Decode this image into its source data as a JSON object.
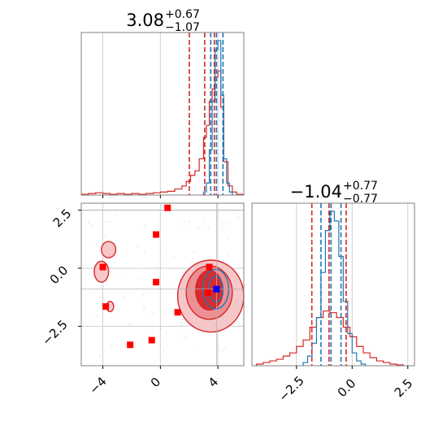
{
  "chart_data": [
    {
      "type": "histogram",
      "panel": "top-left",
      "title": {
        "value": "3.08",
        "plus": "+0.67",
        "minus": "−1.07"
      },
      "xlim": [
        -5.5,
        5.8
      ],
      "grid": true,
      "series": [
        {
          "name": "",
          "color": "#d62728",
          "bin_edges": [
            -5.5,
            -5.0,
            -4.5,
            -4.0,
            -3.5,
            -3.0,
            -2.5,
            -2.0,
            -1.5,
            -1.0,
            -0.5,
            0.0,
            0.5,
            1.0,
            1.5,
            1.8,
            2.1,
            2.4,
            2.7,
            3.0,
            3.2,
            3.4,
            3.6,
            3.8,
            4.0,
            4.2,
            4.4,
            4.7,
            5.0,
            5.3,
            5.8
          ],
          "counts": [
            0.5,
            1,
            1.5,
            1,
            0.5,
            1,
            0.5,
            1,
            0.5,
            1,
            1.5,
            2,
            2.5,
            4,
            6,
            9,
            13,
            16,
            24,
            38,
            46,
            62,
            70,
            78,
            82,
            58,
            22,
            6,
            2,
            0.5
          ]
        },
        {
          "name": "",
          "color": "#1f77b4",
          "bin_edges": [
            3.0,
            3.2,
            3.4,
            3.6,
            3.8,
            4.0,
            4.2,
            4.4,
            4.6,
            4.8,
            5.0
          ],
          "counts": [
            2,
            8,
            30,
            62,
            96,
            102,
            66,
            24,
            8,
            2
          ]
        }
      ],
      "vlines": [
        {
          "color": "#d62728",
          "x": [
            2.01,
            3.08,
            3.75
          ]
        },
        {
          "color": "#1f77b4",
          "x": [
            3.5,
            3.9,
            4.35
          ]
        }
      ]
    },
    {
      "type": "scatter",
      "panel": "bottom-left",
      "xlim": [
        -5.5,
        5.8
      ],
      "ylim": [
        -4.2,
        2.8
      ],
      "xticks": [
        "−4",
        "0",
        "4"
      ],
      "xtick_values": [
        -4,
        0,
        4
      ],
      "yticks": [
        "2.5",
        "0.0",
        "−2.5"
      ],
      "ytick_values": [
        2.5,
        0.0,
        -2.5
      ],
      "grid": true,
      "contours": [
        {
          "color": "#d62728",
          "fill": "#f5c4c6",
          "cx": 3.5,
          "cy": -1.2,
          "rx": 2.3,
          "ry": 1.55
        },
        {
          "color": "#d62728",
          "fill": "#eb8d91",
          "cx": 3.4,
          "cy": -1.05,
          "rx": 1.6,
          "ry": 1.15
        },
        {
          "color": "#d62728",
          "fill": "#d62728",
          "cx": 3.4,
          "cy": -0.95,
          "rx": 0.95,
          "ry": 0.85
        },
        {
          "color": "#1f77b4",
          "fill": "none",
          "cx": 3.85,
          "cy": -0.9,
          "rx": 0.9,
          "ry": 0.85
        },
        {
          "color": "#1f77b4",
          "fill": "none",
          "cx": 3.85,
          "cy": -0.9,
          "rx": 0.5,
          "ry": 0.55
        }
      ],
      "islands": [
        {
          "color": "#d62728",
          "fill": "#f5c4c6",
          "cx": -3.6,
          "cy": 0.8,
          "rx": 0.5,
          "ry": 0.35
        },
        {
          "color": "#d62728",
          "fill": "#f5c4c6",
          "cx": -4.1,
          "cy": -0.15,
          "rx": 0.5,
          "ry": 0.45
        },
        {
          "color": "#d62728",
          "fill": "#f5c4c6",
          "cx": -3.5,
          "cy": -1.65,
          "rx": 0.25,
          "ry": 0.22
        }
      ],
      "red_squares": [
        {
          "x": 0.5,
          "y": 2.6
        },
        {
          "x": -0.3,
          "y": 1.45
        },
        {
          "x": -4.0,
          "y": 0.05
        },
        {
          "x": -0.3,
          "y": -0.6
        },
        {
          "x": 3.4,
          "y": 0.05
        },
        {
          "x": -3.8,
          "y": -1.65
        },
        {
          "x": 1.2,
          "y": -1.9
        },
        {
          "x": 3.3,
          "y": -1.05
        },
        {
          "x": -0.6,
          "y": -3.1
        },
        {
          "x": -2.1,
          "y": -3.3
        }
      ],
      "blue_square": {
        "x": 3.9,
        "y": -0.9
      },
      "crosshair": {
        "x": 3.9,
        "y": -0.9
      },
      "hline_extra": 2.5
    },
    {
      "type": "histogram",
      "panel": "bottom-right",
      "title": {
        "value": "−1.04",
        "plus": "+0.77",
        "minus": "−0.77"
      },
      "xlim": [
        -4.5,
        2.8
      ],
      "xticks": [
        "−2.5",
        "0.0",
        "2.5"
      ],
      "xtick_values": [
        -2.5,
        0.0,
        2.5
      ],
      "grid": true,
      "series": [
        {
          "name": "",
          "color": "#d62728",
          "bin_edges": [
            -4.3,
            -4.0,
            -3.7,
            -3.4,
            -3.1,
            -2.8,
            -2.5,
            -2.2,
            -1.9,
            -1.6,
            -1.3,
            -1.0,
            -0.7,
            -0.4,
            -0.1,
            0.2,
            0.5,
            0.8,
            1.1,
            1.4,
            1.7,
            2.0,
            2.3
          ],
          "counts": [
            1,
            2,
            3,
            4,
            6,
            8,
            12,
            16,
            24,
            30,
            34,
            33,
            30,
            24,
            18,
            12,
            8,
            5,
            3,
            2,
            1,
            0.5
          ]
        },
        {
          "name": "",
          "color": "#1f77b4",
          "bin_edges": [
            -2.2,
            -2.0,
            -1.8,
            -1.6,
            -1.4,
            -1.2,
            -1.0,
            -0.8,
            -0.6,
            -0.4,
            -0.2,
            0.0,
            0.2,
            0.4,
            0.6
          ],
          "counts": [
            2,
            6,
            14,
            30,
            58,
            84,
            96,
            90,
            68,
            40,
            20,
            8,
            3,
            1
          ]
        }
      ],
      "vlines": [
        {
          "color": "#d62728",
          "x": [
            -1.81,
            -1.04,
            -0.27
          ]
        },
        {
          "color": "#1f77b4",
          "x": [
            -1.4,
            -0.95,
            -0.5
          ]
        }
      ]
    }
  ]
}
